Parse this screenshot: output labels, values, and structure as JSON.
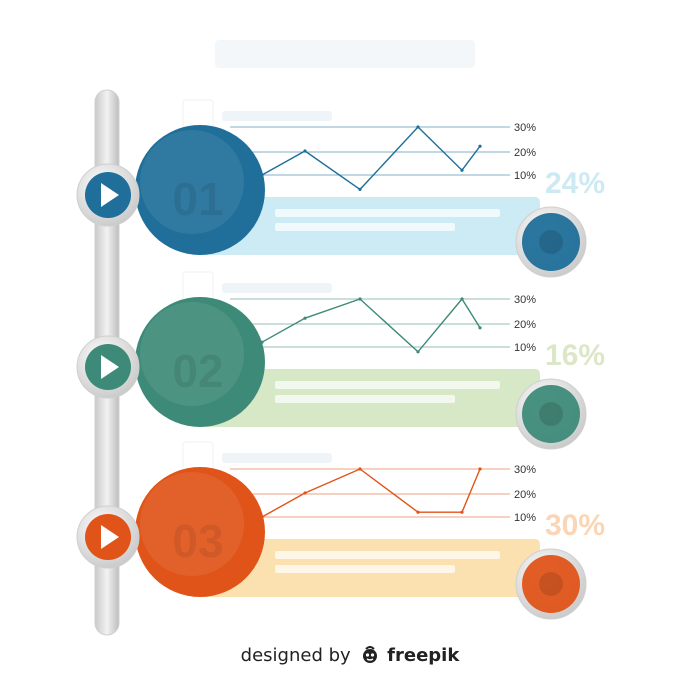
{
  "credit": {
    "lead": "designed by",
    "brand": "freepik",
    "logo_icon": "freepik-logo-icon"
  },
  "steps": [
    {
      "id": "01",
      "percent": "24%",
      "accent": "#1f6f9a",
      "light": "#ccebf4",
      "pct_color": "#cdeaf4",
      "play_icon": "play-icon",
      "chart_data": {
        "type": "line",
        "ylabels": [
          "30%",
          "20%",
          "10%"
        ],
        "values": [
          10,
          20,
          4,
          30,
          12,
          22
        ]
      }
    },
    {
      "id": "02",
      "percent": "16%",
      "accent": "#3e8a78",
      "light": "#d7e8c6",
      "pct_color": "#dbe7c8",
      "play_icon": "play-icon",
      "chart_data": {
        "type": "line",
        "ylabels": [
          "30%",
          "20%",
          "10%"
        ],
        "values": [
          12,
          22,
          30,
          8,
          30,
          18
        ]
      }
    },
    {
      "id": "03",
      "percent": "30%",
      "accent": "#e0541a",
      "light": "#fbe1b0",
      "pct_color": "#fad6b7",
      "play_icon": "play-icon",
      "chart_data": {
        "type": "line",
        "ylabels": [
          "30%",
          "20%",
          "10%"
        ],
        "values": [
          10,
          20,
          30,
          12,
          12,
          30
        ]
      }
    }
  ]
}
